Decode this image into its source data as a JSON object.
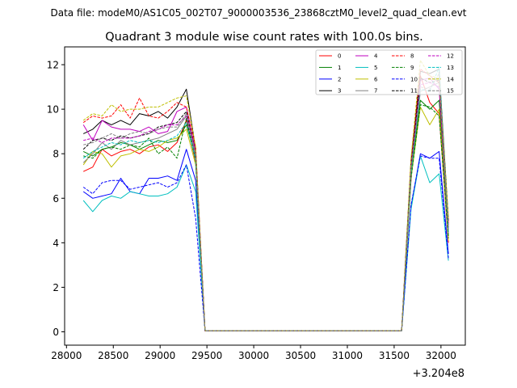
{
  "header": {
    "data_file_text": "Data file: modeM0/AS1C05_002T07_9000003536_23868cztM0_level2_quad_clean.evt"
  },
  "chart_data": {
    "type": "line",
    "title": "Quadrant 3 module wise count rates with 100.0s bins.",
    "xlabel": "",
    "ylabel": "",
    "x_offset_text": "+3.204e8",
    "xlim": [
      27980,
      32260
    ],
    "ylim": [
      -0.6,
      12.8
    ],
    "xticks": [
      28000,
      28500,
      29000,
      29500,
      30000,
      30500,
      31000,
      31500,
      32000
    ],
    "yticks": [
      0,
      2,
      4,
      6,
      8,
      10,
      12
    ],
    "x": [
      28180,
      28280,
      28380,
      28480,
      28580,
      28680,
      28780,
      28880,
      28980,
      29080,
      29180,
      29280,
      29380,
      29480,
      29580,
      29680,
      29780,
      29880,
      29980,
      30080,
      30180,
      30280,
      30380,
      30480,
      30580,
      30680,
      30780,
      30880,
      30980,
      31080,
      31180,
      31280,
      31380,
      31480,
      31580,
      31680,
      31780,
      31880,
      31980,
      32080
    ],
    "legend": {
      "position": "top-right",
      "columns": 4,
      "font_size_note": "small"
    },
    "series": [
      {
        "name": "0",
        "color": "#ff0000",
        "dash": "solid",
        "values": [
          7.2,
          7.4,
          8.2,
          7.9,
          8.1,
          8.2,
          8.0,
          8.3,
          8.4,
          8.1,
          8.5,
          9.5,
          7.6,
          0.05,
          0.05,
          0.05,
          0.05,
          0.05,
          0.05,
          0.05,
          0.05,
          0.05,
          0.05,
          0.05,
          0.05,
          0.05,
          0.05,
          0.05,
          0.05,
          0.05,
          0.05,
          0.05,
          0.05,
          0.05,
          0.05,
          6.8,
          11.5,
          10.3,
          9.8,
          4.0
        ]
      },
      {
        "name": "1",
        "color": "#008000",
        "dash": "solid",
        "values": [
          8.1,
          7.9,
          8.2,
          8.3,
          8.5,
          8.4,
          8.2,
          8.4,
          8.6,
          8.5,
          8.6,
          9.3,
          7.8,
          0.05,
          0.05,
          0.05,
          0.05,
          0.05,
          0.05,
          0.05,
          0.05,
          0.05,
          0.05,
          0.05,
          0.05,
          0.05,
          0.05,
          0.05,
          0.05,
          0.05,
          0.05,
          0.05,
          0.05,
          0.05,
          0.05,
          7.0,
          10.4,
          10.0,
          10.4,
          4.3
        ]
      },
      {
        "name": "2",
        "color": "#0000ff",
        "dash": "solid",
        "values": [
          6.3,
          6.0,
          6.1,
          6.2,
          6.9,
          6.3,
          6.2,
          6.9,
          6.9,
          7.0,
          6.8,
          8.2,
          6.8,
          0.05,
          0.05,
          0.05,
          0.05,
          0.05,
          0.05,
          0.05,
          0.05,
          0.05,
          0.05,
          0.05,
          0.05,
          0.05,
          0.05,
          0.05,
          0.05,
          0.05,
          0.05,
          0.05,
          0.05,
          0.05,
          0.05,
          5.6,
          8.0,
          7.8,
          8.1,
          3.5
        ]
      },
      {
        "name": "3",
        "color": "#000000",
        "dash": "solid",
        "values": [
          8.9,
          9.1,
          9.5,
          9.3,
          9.5,
          9.3,
          9.8,
          9.7,
          9.9,
          9.6,
          10.1,
          10.9,
          8.2,
          0.05,
          0.05,
          0.05,
          0.05,
          0.05,
          0.05,
          0.05,
          0.05,
          0.05,
          0.05,
          0.05,
          0.05,
          0.05,
          0.05,
          0.05,
          0.05,
          0.05,
          0.05,
          0.05,
          0.05,
          0.05,
          0.05,
          7.7,
          11.7,
          11.6,
          11.8,
          5.0
        ]
      },
      {
        "name": "4",
        "color": "#bf00bf",
        "dash": "solid",
        "values": [
          9.3,
          8.6,
          9.5,
          9.2,
          9.1,
          9.1,
          9.0,
          9.2,
          8.9,
          9.0,
          9.9,
          10.1,
          8.1,
          0.05,
          0.05,
          0.05,
          0.05,
          0.05,
          0.05,
          0.05,
          0.05,
          0.05,
          0.05,
          0.05,
          0.05,
          0.05,
          0.05,
          0.05,
          0.05,
          0.05,
          0.05,
          0.05,
          0.05,
          0.05,
          0.05,
          7.5,
          11.3,
          11.4,
          10.9,
          4.6
        ]
      },
      {
        "name": "5",
        "color": "#00bfbf",
        "dash": "solid",
        "values": [
          5.9,
          5.4,
          5.9,
          6.1,
          6.0,
          6.3,
          6.2,
          6.1,
          6.1,
          6.2,
          6.5,
          7.5,
          6.3,
          0.05,
          0.05,
          0.05,
          0.05,
          0.05,
          0.05,
          0.05,
          0.05,
          0.05,
          0.05,
          0.05,
          0.05,
          0.05,
          0.05,
          0.05,
          0.05,
          0.05,
          0.05,
          0.05,
          0.05,
          0.05,
          0.05,
          5.5,
          7.9,
          6.7,
          7.1,
          3.2
        ]
      },
      {
        "name": "6",
        "color": "#bfbf00",
        "dash": "solid",
        "values": [
          7.5,
          8.1,
          8.0,
          7.4,
          7.9,
          8.0,
          8.2,
          8.1,
          8.3,
          8.6,
          8.7,
          9.1,
          7.5,
          0.05,
          0.05,
          0.05,
          0.05,
          0.05,
          0.05,
          0.05,
          0.05,
          0.05,
          0.05,
          0.05,
          0.05,
          0.05,
          0.05,
          0.05,
          0.05,
          0.05,
          0.05,
          0.05,
          0.05,
          0.05,
          0.05,
          6.9,
          10.1,
          9.3,
          10.0,
          4.1
        ]
      },
      {
        "name": "7",
        "color": "#808080",
        "dash": "solid",
        "values": [
          7.6,
          8.0,
          8.5,
          8.2,
          8.6,
          8.4,
          8.5,
          8.6,
          8.7,
          8.9,
          9.1,
          9.7,
          7.9,
          0.05,
          0.05,
          0.05,
          0.05,
          0.05,
          0.05,
          0.05,
          0.05,
          0.05,
          0.05,
          0.05,
          0.05,
          0.05,
          0.05,
          0.05,
          0.05,
          0.05,
          0.05,
          0.05,
          0.05,
          0.05,
          0.05,
          7.2,
          10.8,
          11.0,
          11.2,
          4.4
        ]
      },
      {
        "name": "8",
        "color": "#ff0000",
        "dash": "dashed",
        "values": [
          9.4,
          9.7,
          9.6,
          9.7,
          10.2,
          9.6,
          10.5,
          9.7,
          9.6,
          9.9,
          10.3,
          10.1,
          8.3,
          0.05,
          0.05,
          0.05,
          0.05,
          0.05,
          0.05,
          0.05,
          0.05,
          0.05,
          0.05,
          0.05,
          0.05,
          0.05,
          0.05,
          0.05,
          0.05,
          0.05,
          0.05,
          0.05,
          0.05,
          0.05,
          0.05,
          7.6,
          11.8,
          11.5,
          11.2,
          4.9
        ]
      },
      {
        "name": "9",
        "color": "#008000",
        "dash": "dashed",
        "values": [
          7.9,
          7.8,
          8.2,
          8.3,
          8.2,
          8.4,
          8.3,
          8.7,
          8.0,
          8.3,
          7.8,
          9.6,
          7.7,
          0.05,
          0.05,
          0.05,
          0.05,
          0.05,
          0.05,
          0.05,
          0.05,
          0.05,
          0.05,
          0.05,
          0.05,
          0.05,
          0.05,
          0.05,
          0.05,
          0.05,
          0.05,
          0.05,
          0.05,
          0.05,
          0.05,
          6.9,
          10.2,
          10.1,
          9.7,
          4.2
        ]
      },
      {
        "name": "10",
        "color": "#0000ff",
        "dash": "dashed",
        "values": [
          6.5,
          6.2,
          6.7,
          6.8,
          6.8,
          6.4,
          6.5,
          6.6,
          6.7,
          6.5,
          6.7,
          7.5,
          5.1,
          0.05,
          0.05,
          0.05,
          0.05,
          0.05,
          0.05,
          0.05,
          0.05,
          0.05,
          0.05,
          0.05,
          0.05,
          0.05,
          0.05,
          0.05,
          0.05,
          0.05,
          0.05,
          0.05,
          0.05,
          0.05,
          0.05,
          5.7,
          7.9,
          7.8,
          7.8,
          3.3
        ]
      },
      {
        "name": "11",
        "color": "#000000",
        "dash": "dashed",
        "values": [
          8.2,
          8.6,
          8.7,
          8.6,
          8.8,
          8.7,
          8.8,
          8.9,
          9.2,
          9.3,
          9.4,
          9.9,
          8.0,
          0.05,
          0.05,
          0.05,
          0.05,
          0.05,
          0.05,
          0.05,
          0.05,
          0.05,
          0.05,
          0.05,
          0.05,
          0.05,
          0.05,
          0.05,
          0.05,
          0.05,
          0.05,
          0.05,
          0.05,
          0.05,
          0.05,
          7.4,
          11.4,
          11.2,
          11.3,
          4.7
        ]
      },
      {
        "name": "12",
        "color": "#bf00bf",
        "dash": "dashed",
        "values": [
          8.6,
          8.7,
          8.5,
          8.7,
          8.7,
          8.7,
          8.8,
          9.0,
          9.1,
          9.3,
          9.3,
          9.7,
          8.0,
          0.05,
          0.05,
          0.05,
          0.05,
          0.05,
          0.05,
          0.05,
          0.05,
          0.05,
          0.05,
          0.05,
          0.05,
          0.05,
          0.05,
          0.05,
          0.05,
          0.05,
          0.05,
          0.05,
          0.05,
          0.05,
          0.05,
          7.3,
          11.1,
          11.2,
          11.0,
          4.6
        ]
      },
      {
        "name": "13",
        "color": "#00bfbf",
        "dash": "dashed",
        "values": [
          7.8,
          8.1,
          8.3,
          8.5,
          8.4,
          8.6,
          8.5,
          8.6,
          8.5,
          8.6,
          8.8,
          9.4,
          7.7,
          0.05,
          0.05,
          0.05,
          0.05,
          0.05,
          0.05,
          0.05,
          0.05,
          0.05,
          0.05,
          0.05,
          0.05,
          0.05,
          0.05,
          0.05,
          0.05,
          0.05,
          0.05,
          0.05,
          0.05,
          0.05,
          0.05,
          7.1,
          10.9,
          10.8,
          11.9,
          4.5
        ]
      },
      {
        "name": "14",
        "color": "#bfbf00",
        "dash": "dashed",
        "values": [
          9.5,
          9.8,
          9.7,
          10.2,
          9.9,
          10.0,
          10.0,
          10.1,
          10.1,
          10.3,
          10.5,
          10.6,
          8.3,
          0.05,
          0.05,
          0.05,
          0.05,
          0.05,
          0.05,
          0.05,
          0.05,
          0.05,
          0.05,
          0.05,
          0.05,
          0.05,
          0.05,
          0.05,
          0.05,
          0.05,
          0.05,
          0.05,
          0.05,
          0.05,
          0.05,
          7.8,
          12.2,
          11.5,
          11.4,
          5.1
        ]
      },
      {
        "name": "15",
        "color": "#808080",
        "dash": "dashed",
        "values": [
          8.4,
          8.5,
          8.7,
          8.9,
          8.7,
          8.9,
          9.0,
          8.9,
          9.1,
          9.2,
          9.2,
          9.8,
          8.0,
          0.05,
          0.05,
          0.05,
          0.05,
          0.05,
          0.05,
          0.05,
          0.05,
          0.05,
          0.05,
          0.05,
          0.05,
          0.05,
          0.05,
          0.05,
          0.05,
          0.05,
          0.05,
          0.05,
          0.05,
          0.05,
          0.05,
          7.3,
          11.0,
          10.9,
          11.6,
          4.6
        ]
      }
    ]
  }
}
